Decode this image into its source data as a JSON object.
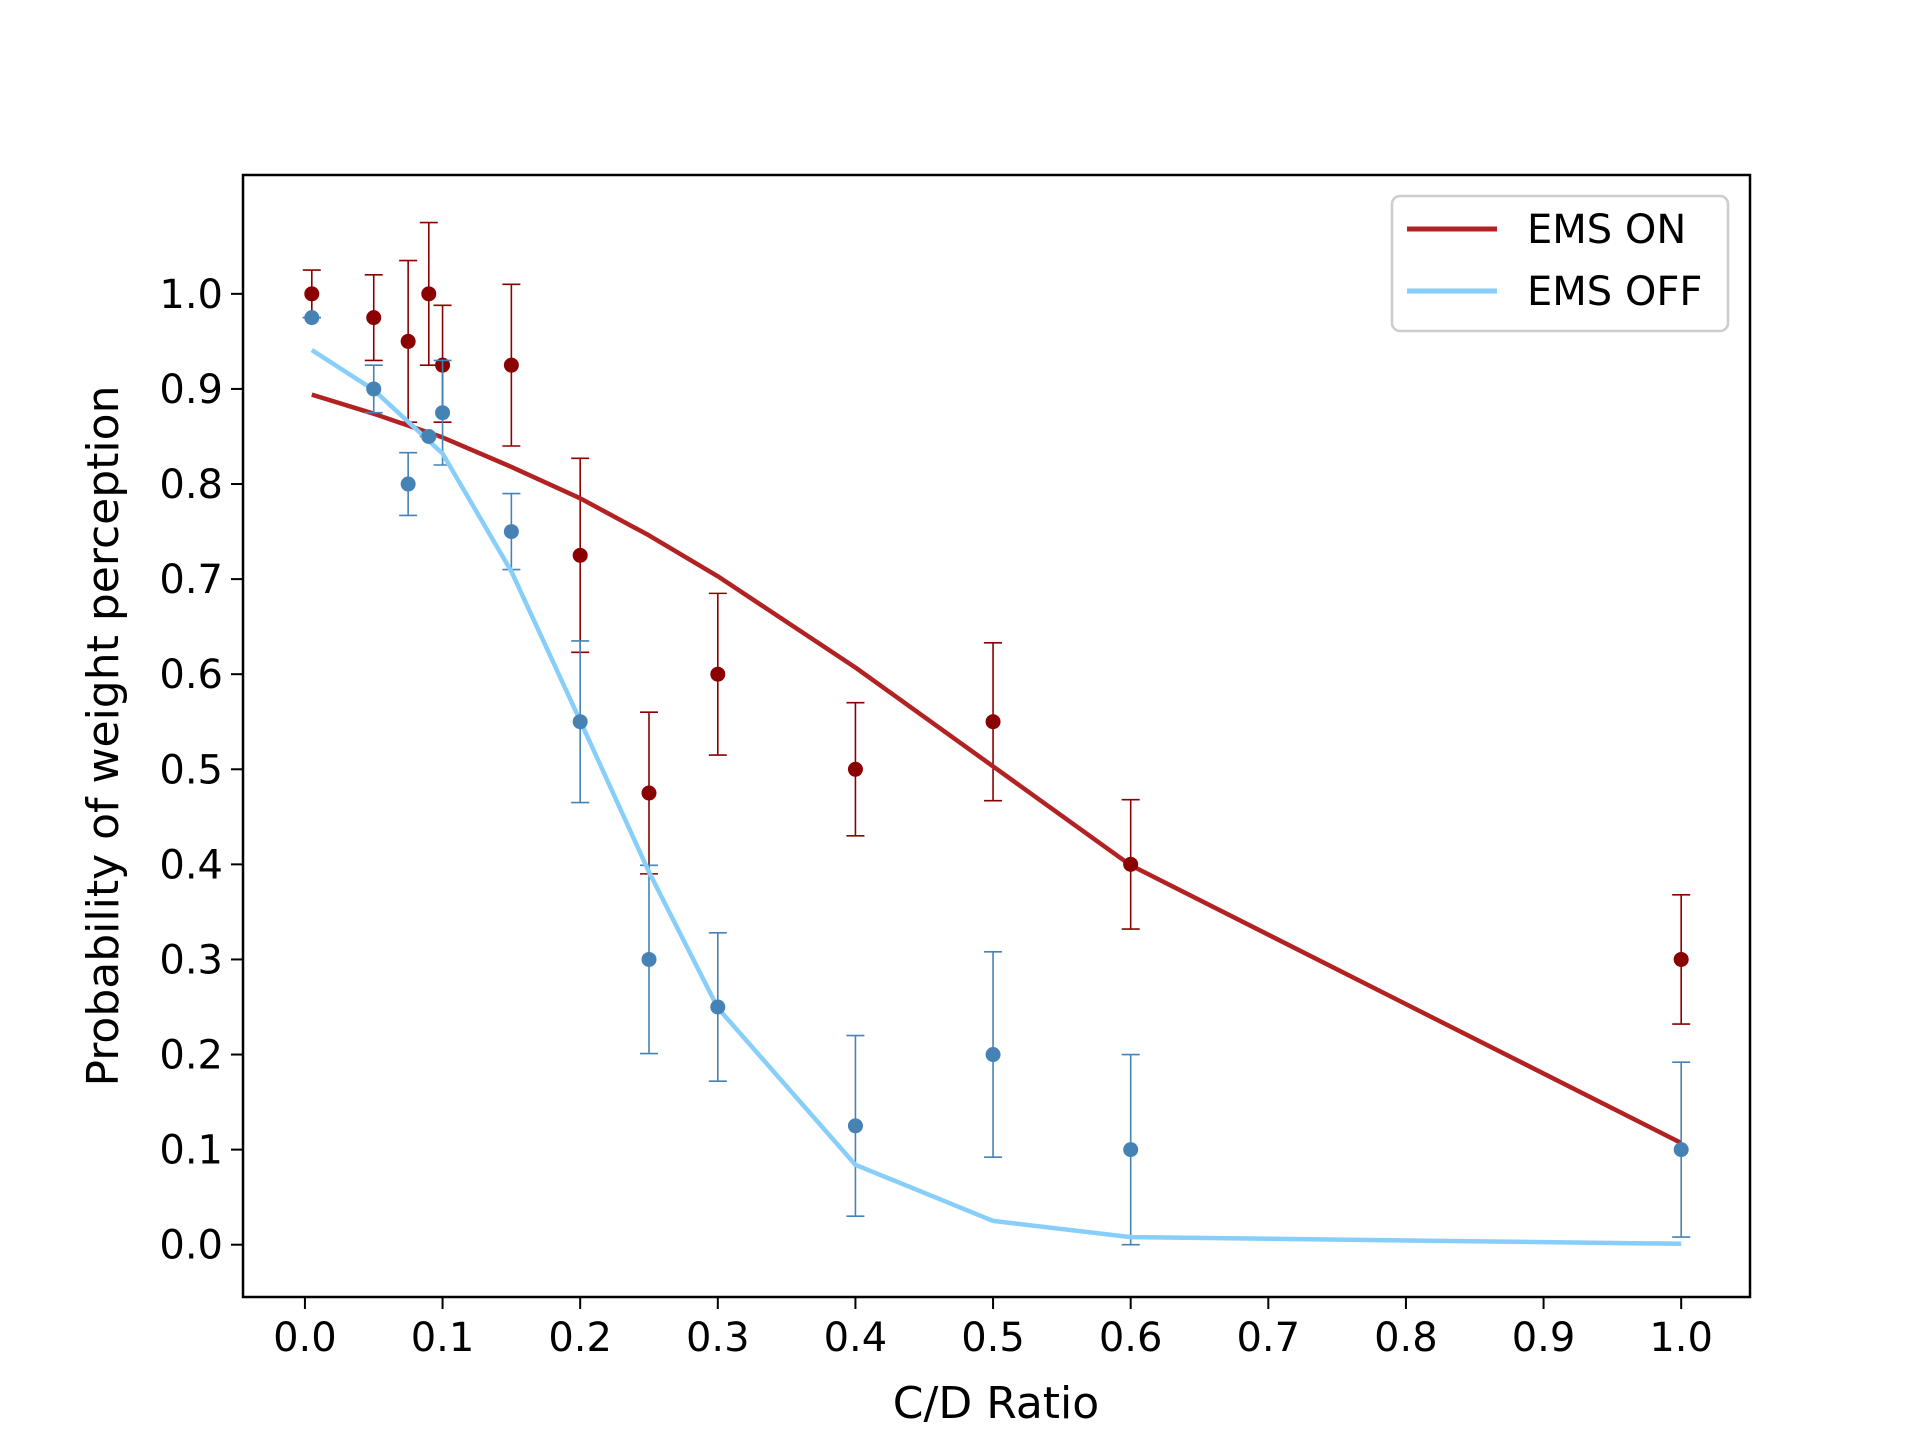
{
  "chart_data": {
    "type": "scatter",
    "title": "",
    "xlabel": "C/D Ratio",
    "ylabel": "Probability of weight perception",
    "xlim": [
      -0.045,
      1.05
    ],
    "ylim": [
      -0.055,
      1.125
    ],
    "xticks": [
      "0.0",
      "0.1",
      "0.2",
      "0.3",
      "0.4",
      "0.5",
      "0.6",
      "0.7",
      "0.8",
      "0.9",
      "1.0"
    ],
    "xtick_values": [
      0.0,
      0.1,
      0.2,
      0.3,
      0.4,
      0.5,
      0.6,
      0.7,
      0.8,
      0.9,
      1.0
    ],
    "yticks": [
      "0.0",
      "0.1",
      "0.2",
      "0.3",
      "0.4",
      "0.5",
      "0.6",
      "0.7",
      "0.8",
      "0.9",
      "1.0"
    ],
    "ytick_values": [
      0.0,
      0.1,
      0.2,
      0.3,
      0.4,
      0.5,
      0.6,
      0.7,
      0.8,
      0.9,
      1.0
    ],
    "grid": false,
    "legend_position": "top-right",
    "series": [
      {
        "name": "EMS ON",
        "line_color": "#b22222",
        "marker_color": "#8b0000",
        "fit_x": [
          0.005,
          0.05,
          0.1,
          0.15,
          0.2,
          0.25,
          0.3,
          0.4,
          0.5,
          0.6,
          1.0
        ],
        "fit_y": [
          0.894,
          0.874,
          0.849,
          0.818,
          0.785,
          0.746,
          0.703,
          0.607,
          0.503,
          0.399,
          0.107
        ],
        "points": [
          {
            "x": 0.005,
            "y": 1.0,
            "ylow": 0.975,
            "yhigh": 1.025
          },
          {
            "x": 0.05,
            "y": 0.975,
            "ylow": 0.93,
            "yhigh": 1.02
          },
          {
            "x": 0.075,
            "y": 0.95,
            "ylow": 0.865,
            "yhigh": 1.035
          },
          {
            "x": 0.09,
            "y": 1.0,
            "ylow": 0.925,
            "yhigh": 1.075
          },
          {
            "x": 0.1,
            "y": 0.925,
            "ylow": 0.865,
            "yhigh": 0.988
          },
          {
            "x": 0.15,
            "y": 0.925,
            "ylow": 0.84,
            "yhigh": 1.01
          },
          {
            "x": 0.2,
            "y": 0.725,
            "ylow": 0.623,
            "yhigh": 0.827
          },
          {
            "x": 0.25,
            "y": 0.475,
            "ylow": 0.39,
            "yhigh": 0.56
          },
          {
            "x": 0.3,
            "y": 0.6,
            "ylow": 0.515,
            "yhigh": 0.685
          },
          {
            "x": 0.4,
            "y": 0.5,
            "ylow": 0.43,
            "yhigh": 0.57
          },
          {
            "x": 0.5,
            "y": 0.55,
            "ylow": 0.467,
            "yhigh": 0.633
          },
          {
            "x": 0.6,
            "y": 0.4,
            "ylow": 0.332,
            "yhigh": 0.468
          },
          {
            "x": 1.0,
            "y": 0.3,
            "ylow": 0.232,
            "yhigh": 0.368
          }
        ]
      },
      {
        "name": "EMS OFF",
        "line_color": "#87cefa",
        "marker_color": "#4682b4",
        "fit_x": [
          0.005,
          0.05,
          0.1,
          0.15,
          0.2,
          0.25,
          0.3,
          0.4,
          0.5,
          0.6,
          1.0
        ],
        "fit_y": [
          0.941,
          0.899,
          0.832,
          0.708,
          0.551,
          0.392,
          0.249,
          0.084,
          0.025,
          0.008,
          0.001
        ],
        "points": [
          {
            "x": 0.005,
            "y": 0.975,
            "ylow": 0.975,
            "yhigh": 0.975
          },
          {
            "x": 0.05,
            "y": 0.9,
            "ylow": 0.875,
            "yhigh": 0.925
          },
          {
            "x": 0.075,
            "y": 0.8,
            "ylow": 0.767,
            "yhigh": 0.833
          },
          {
            "x": 0.09,
            "y": 0.85,
            "ylow": 0.85,
            "yhigh": 0.85
          },
          {
            "x": 0.1,
            "y": 0.875,
            "ylow": 0.82,
            "yhigh": 0.93
          },
          {
            "x": 0.15,
            "y": 0.75,
            "ylow": 0.71,
            "yhigh": 0.79
          },
          {
            "x": 0.2,
            "y": 0.55,
            "ylow": 0.465,
            "yhigh": 0.635
          },
          {
            "x": 0.25,
            "y": 0.3,
            "ylow": 0.201,
            "yhigh": 0.399
          },
          {
            "x": 0.3,
            "y": 0.25,
            "ylow": 0.172,
            "yhigh": 0.328
          },
          {
            "x": 0.4,
            "y": 0.125,
            "ylow": 0.03,
            "yhigh": 0.22
          },
          {
            "x": 0.5,
            "y": 0.2,
            "ylow": 0.092,
            "yhigh": 0.308
          },
          {
            "x": 0.6,
            "y": 0.1,
            "ylow": 0.0,
            "yhigh": 0.2
          },
          {
            "x": 1.0,
            "y": 0.1,
            "ylow": 0.008,
            "yhigh": 0.192
          }
        ]
      }
    ]
  }
}
